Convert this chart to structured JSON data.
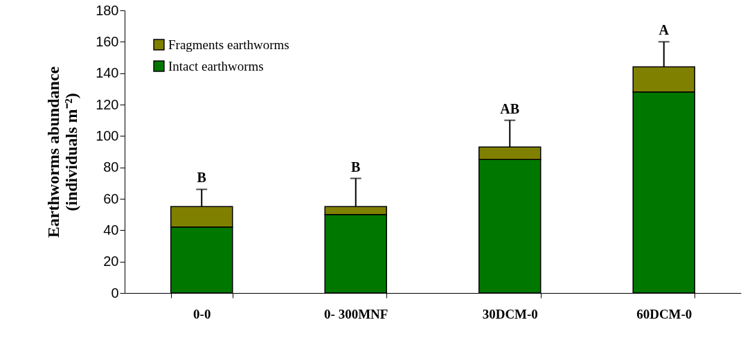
{
  "chart_data": {
    "type": "bar",
    "stacked": true,
    "ylabel": "Earthworms abundance\n(individuals m⁻²)",
    "categories": [
      "0-0",
      "0- 300MNF",
      "30DCM-0",
      "60DCM-0"
    ],
    "series": [
      {
        "name": "Intact earthworms",
        "color": "#007800",
        "values": [
          42,
          50,
          85,
          128
        ]
      },
      {
        "name": "Fragments earthworms",
        "color": "#808000",
        "values": [
          13,
          5,
          8,
          16
        ],
        "errors": [
          11,
          18,
          17,
          16
        ]
      }
    ],
    "ylim": [
      0,
      180
    ],
    "yticks": [
      0,
      20,
      40,
      60,
      80,
      100,
      120,
      140,
      160,
      180
    ],
    "grid": false,
    "legend": "top left",
    "annotations": [
      {
        "text": "B",
        "x": "0-0",
        "y": 66
      },
      {
        "text": "B",
        "x": "0- 300MNF",
        "y": 73
      },
      {
        "text": "AB",
        "x": "30DCM-0",
        "y": 110
      },
      {
        "text": "A",
        "x": "60DCM-0",
        "y": 160
      }
    ]
  }
}
